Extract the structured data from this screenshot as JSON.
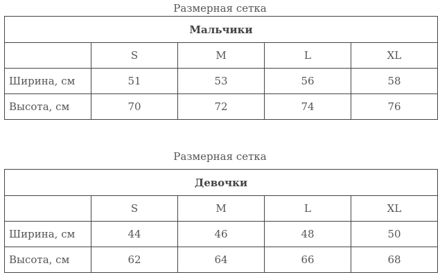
{
  "tables": [
    {
      "caption": "Размерная сетка",
      "group": "Мальчики",
      "sizes": [
        "S",
        "M",
        "L",
        "XL"
      ],
      "rows": [
        {
          "label": "Ширина, см",
          "values": [
            "51",
            "53",
            "56",
            "58"
          ]
        },
        {
          "label": "Высота, см",
          "values": [
            "70",
            "72",
            "74",
            "76"
          ]
        }
      ]
    },
    {
      "caption": "Размерная сетка",
      "group": "Девочки",
      "sizes": [
        "S",
        "M",
        "L",
        "XL"
      ],
      "rows": [
        {
          "label": "Ширина, см",
          "values": [
            "44",
            "46",
            "48",
            "50"
          ]
        },
        {
          "label": "Высота, см",
          "values": [
            "62",
            "64",
            "66",
            "68"
          ]
        }
      ]
    }
  ]
}
